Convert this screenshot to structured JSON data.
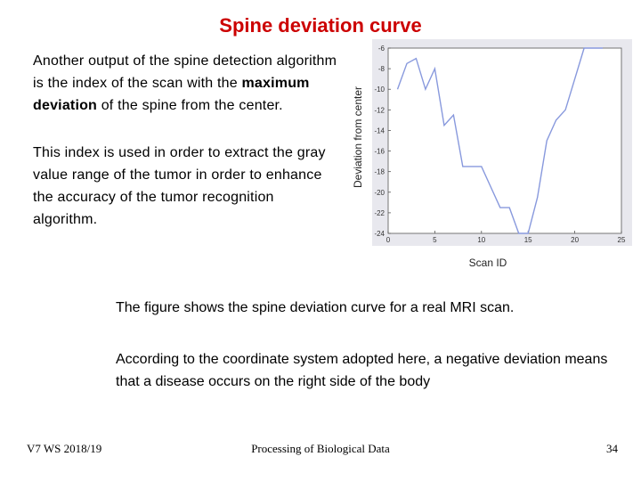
{
  "slide": {
    "title": "Spine deviation curve",
    "para1_a": "Another output of the spine detection algorithm is the index of the scan with the ",
    "para1_bold": "maximum deviation",
    "para1_b": " of the spine from the center.",
    "para2": "This index is used in order to extract the gray value range of the tumor in order to enhance the accuracy of the tumor recognition algorithm.",
    "caption1": "The figure shows the spine deviation curve for a real MRI scan.",
    "caption2": "According to the coordinate system adopted here, a negative deviation means that a disease occurs on the right side of the body"
  },
  "footer": {
    "left": "V7 WS 2018/19",
    "center": "Processing of Biological Data",
    "page": "34"
  },
  "colors": {
    "title": "#cc0000",
    "line": "#8899dd",
    "plot_bg": "#ffffff",
    "frame_bg": "#e8e8ee"
  },
  "chart_data": {
    "type": "line",
    "ylabel": "Deviation from center",
    "xlabel": "Scan ID",
    "xlim": [
      0,
      25
    ],
    "ylim": [
      -24,
      -6
    ],
    "xticks": [
      "0",
      "5",
      "10",
      "15",
      "20",
      "25"
    ],
    "yticks": [
      "-6",
      "-8",
      "-10",
      "-12",
      "-14",
      "-16",
      "-18",
      "-20",
      "-22",
      "-24"
    ],
    "series": [
      {
        "x": [
          1,
          2,
          3,
          4,
          5,
          6,
          7,
          8,
          9,
          10,
          11,
          12,
          13,
          14,
          15,
          16,
          17,
          18,
          19,
          20,
          21,
          22,
          23
        ],
        "y": [
          -10,
          -7.5,
          -7,
          -10,
          -8,
          -13.5,
          -12.5,
          -17.5,
          -17.5,
          -17.5,
          -19.5,
          -21.5,
          -21.5,
          -24,
          -24,
          -20.5,
          -15,
          -13,
          -12,
          -9,
          -6,
          -6,
          -6
        ]
      }
    ]
  }
}
